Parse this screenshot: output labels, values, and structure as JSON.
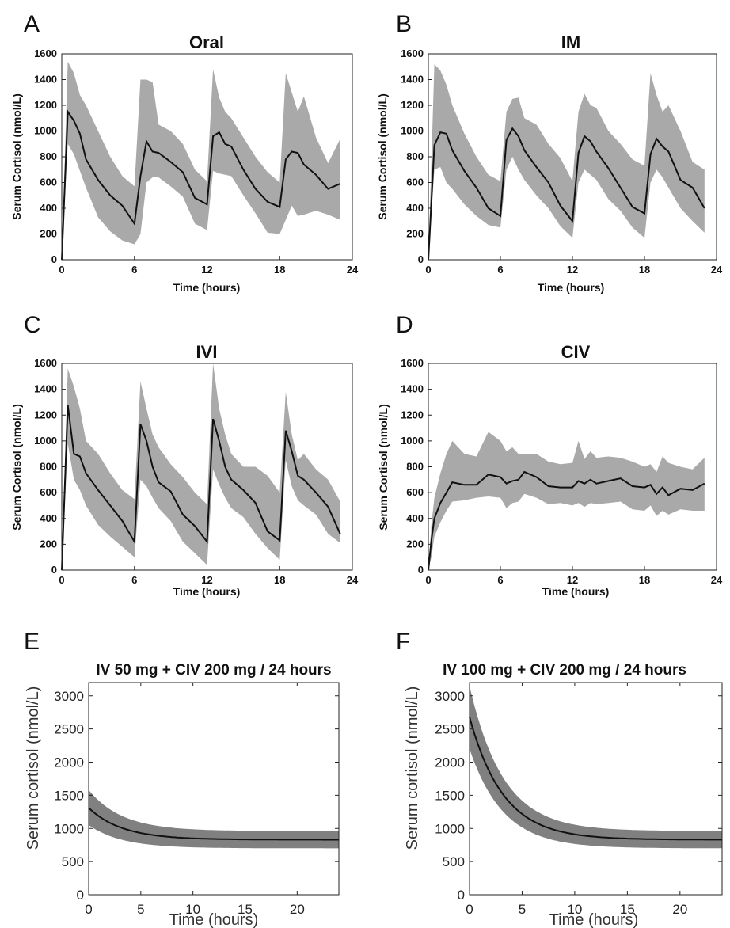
{
  "chart_data": [
    {
      "letter": "A",
      "title": "Oral",
      "type": "area",
      "xlabel": "Time (hours)",
      "ylabel": "Serum Cortisol (nmol/L)",
      "xlim": [
        0,
        24
      ],
      "ylim": [
        0,
        1600
      ],
      "xticks": [
        "0",
        "6",
        "12",
        "18",
        "24"
      ],
      "yticks": [
        "0",
        "200",
        "400",
        "600",
        "800",
        "1000",
        "1200",
        "1400",
        "1600"
      ],
      "grid": false,
      "x": [
        0,
        0.5,
        1,
        1.5,
        2,
        3,
        4,
        5,
        6,
        6.5,
        7,
        7.5,
        8,
        9,
        10,
        11,
        12,
        12.5,
        13,
        13.5,
        14,
        15,
        16,
        17,
        18,
        18.5,
        19,
        19.5,
        20,
        21,
        22,
        23
      ],
      "mean": [
        0,
        1150,
        1080,
        980,
        780,
        620,
        500,
        420,
        280,
        650,
        920,
        840,
        830,
        760,
        680,
        480,
        430,
        960,
        990,
        900,
        880,
        700,
        550,
        450,
        410,
        780,
        840,
        830,
        740,
        660,
        550,
        590
      ],
      "upper": [
        0,
        1540,
        1450,
        1280,
        1200,
        1000,
        800,
        650,
        570,
        1400,
        1400,
        1380,
        1050,
        1000,
        900,
        700,
        610,
        1480,
        1260,
        1150,
        1100,
        950,
        800,
        680,
        600,
        1450,
        1300,
        1150,
        1270,
        950,
        750,
        940
      ],
      "lower": [
        0,
        900,
        820,
        690,
        560,
        330,
        220,
        150,
        120,
        200,
        600,
        640,
        640,
        570,
        490,
        280,
        230,
        690,
        670,
        660,
        650,
        500,
        360,
        210,
        200,
        310,
        420,
        340,
        350,
        380,
        350,
        310
      ]
    },
    {
      "letter": "B",
      "title": "IM",
      "type": "area",
      "xlabel": "Time (hours)",
      "ylabel": "Serum Cortisol (nmol/L)",
      "xlim": [
        0,
        24
      ],
      "ylim": [
        0,
        1600
      ],
      "xticks": [
        "0",
        "6",
        "12",
        "18",
        "24"
      ],
      "yticks": [
        "0",
        "200",
        "400",
        "600",
        "800",
        "1000",
        "1200",
        "1400",
        "1600"
      ],
      "grid": false,
      "x": [
        0,
        0.5,
        1,
        1.5,
        2,
        3,
        4,
        5,
        6,
        6.5,
        7,
        7.5,
        8,
        9,
        10,
        11,
        12,
        12.5,
        13,
        13.5,
        14,
        15,
        16,
        17,
        18,
        18.5,
        19,
        19.5,
        20,
        21,
        22,
        23
      ],
      "mean": [
        0,
        890,
        990,
        980,
        850,
        690,
        560,
        400,
        340,
        930,
        1020,
        960,
        850,
        720,
        600,
        420,
        300,
        830,
        960,
        920,
        840,
        710,
        560,
        410,
        360,
        820,
        940,
        880,
        840,
        620,
        560,
        400
      ],
      "upper": [
        0,
        1520,
        1470,
        1360,
        1200,
        980,
        800,
        660,
        610,
        1150,
        1250,
        1260,
        1100,
        1050,
        900,
        790,
        610,
        1150,
        1290,
        1200,
        1180,
        1000,
        900,
        780,
        730,
        1450,
        1280,
        1150,
        1200,
        1000,
        760,
        700
      ],
      "lower": [
        0,
        700,
        720,
        600,
        550,
        430,
        340,
        270,
        250,
        700,
        800,
        700,
        620,
        500,
        400,
        260,
        170,
        600,
        700,
        660,
        620,
        470,
        380,
        250,
        170,
        600,
        700,
        640,
        560,
        400,
        300,
        210
      ]
    },
    {
      "letter": "C",
      "title": "IVI",
      "type": "area",
      "xlabel": "Time (hours)",
      "ylabel": "Serum Cortisol (nmol/L)",
      "xlim": [
        0,
        24
      ],
      "ylim": [
        0,
        1600
      ],
      "xticks": [
        "0",
        "6",
        "12",
        "18",
        "24"
      ],
      "yticks": [
        "0",
        "200",
        "400",
        "600",
        "800",
        "1000",
        "1200",
        "1400",
        "1600"
      ],
      "grid": false,
      "x": [
        0,
        0.5,
        1,
        1.5,
        2,
        3,
        4,
        5,
        6,
        6.5,
        7,
        7.5,
        8,
        9,
        10,
        11,
        12,
        12.5,
        13,
        13.5,
        14,
        15,
        16,
        17,
        18,
        18.5,
        19,
        19.5,
        20,
        21,
        22,
        23
      ],
      "mean": [
        0,
        1280,
        900,
        880,
        750,
        620,
        500,
        380,
        220,
        1130,
        1000,
        800,
        680,
        610,
        430,
        340,
        220,
        1170,
        1000,
        800,
        700,
        620,
        520,
        300,
        230,
        1080,
        920,
        730,
        700,
        600,
        490,
        280
      ],
      "upper": [
        0,
        1560,
        1420,
        1250,
        1000,
        900,
        750,
        620,
        550,
        1460,
        1250,
        1050,
        950,
        820,
        720,
        600,
        510,
        1600,
        1250,
        1050,
        900,
        800,
        800,
        730,
        600,
        1380,
        1050,
        850,
        900,
        780,
        700,
        530
      ],
      "lower": [
        0,
        980,
        700,
        620,
        500,
        350,
        260,
        180,
        100,
        700,
        650,
        560,
        480,
        380,
        220,
        130,
        40,
        780,
        660,
        560,
        480,
        410,
        280,
        170,
        80,
        850,
        650,
        540,
        500,
        430,
        280,
        210
      ]
    },
    {
      "letter": "D",
      "title": "CIV",
      "type": "area",
      "xlabel": "Time (hours)",
      "ylabel": "Serum Cortisol (nmol/L)",
      "xlim": [
        0,
        24
      ],
      "ylim": [
        0,
        1600
      ],
      "xticks": [
        "0",
        "6",
        "12",
        "18",
        "24"
      ],
      "yticks": [
        "0",
        "200",
        "400",
        "600",
        "800",
        "1000",
        "1200",
        "1400",
        "1600"
      ],
      "grid": false,
      "x": [
        0,
        0.25,
        0.5,
        1,
        1.5,
        2,
        3,
        4,
        5,
        6,
        6.5,
        7,
        7.5,
        8,
        9,
        10,
        11,
        12,
        12.5,
        13,
        13.5,
        14,
        15,
        16,
        17,
        18,
        18.5,
        19,
        19.5,
        20,
        21,
        22,
        23
      ],
      "mean": [
        0,
        230,
        400,
        520,
        600,
        680,
        660,
        660,
        740,
        720,
        670,
        690,
        700,
        760,
        720,
        650,
        640,
        640,
        690,
        670,
        700,
        670,
        690,
        710,
        650,
        640,
        660,
        590,
        640,
        580,
        630,
        620,
        670
      ],
      "upper": [
        0,
        350,
        560,
        750,
        900,
        1000,
        900,
        880,
        1070,
        1000,
        920,
        950,
        900,
        900,
        900,
        840,
        820,
        830,
        1000,
        860,
        920,
        870,
        880,
        870,
        840,
        800,
        820,
        760,
        880,
        830,
        800,
        780,
        870
      ],
      "lower": [
        0,
        100,
        260,
        370,
        460,
        530,
        540,
        560,
        570,
        560,
        480,
        520,
        530,
        590,
        560,
        510,
        520,
        500,
        520,
        490,
        520,
        510,
        520,
        530,
        470,
        460,
        500,
        420,
        460,
        430,
        470,
        460,
        460
      ]
    },
    {
      "letter": "E",
      "title": "IV 50 mg + CIV 200 mg / 24 hours",
      "type": "area",
      "xlabel": "Time (hours)",
      "ylabel": "Serum cortisol (nmol/L)",
      "xlim": [
        0,
        24
      ],
      "ylim": [
        0,
        3200
      ],
      "xticks": [
        "0",
        "5",
        "10",
        "15",
        "20"
      ],
      "yticks": [
        "0",
        "500",
        "1000",
        "1500",
        "2000",
        "2500",
        "3000"
      ],
      "grid": false,
      "start_mean": 1310,
      "steady_mean": 830,
      "start_upper": 1580,
      "steady_upper": 960,
      "start_lower": 1050,
      "steady_lower": 700
    },
    {
      "letter": "F",
      "title": "IV 100 mg + CIV 200 mg / 24 hours",
      "type": "area",
      "xlabel": "Time (hours)",
      "ylabel": "Serum cortisol (nmol/L)",
      "xlim": [
        0,
        24
      ],
      "ylim": [
        0,
        3200
      ],
      "xticks": [
        "0",
        "5",
        "10",
        "15",
        "20"
      ],
      "yticks": [
        "0",
        "500",
        "1000",
        "1500",
        "2000",
        "2500",
        "3000"
      ],
      "grid": false,
      "start_mean": 2680,
      "steady_mean": 830,
      "start_upper": 3150,
      "steady_upper": 960,
      "start_lower": 2200,
      "steady_lower": 700
    }
  ]
}
